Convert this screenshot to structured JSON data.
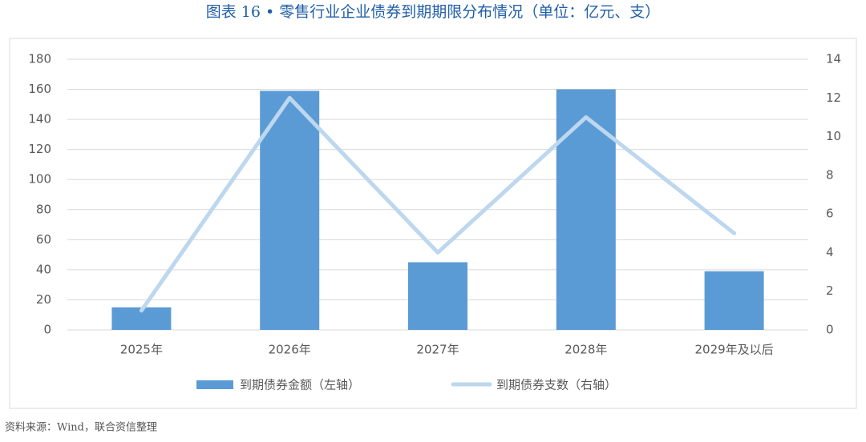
{
  "chart_data": {
    "type": "bar",
    "title": "图表 16 • 零售行业企业债券到期期限分布情况（单位：亿元、支）",
    "categories": [
      "2025年",
      "2026年",
      "2027年",
      "2028年",
      "2029年及以后"
    ],
    "series": [
      {
        "name": "到期债券金额（左轴）",
        "type": "bar",
        "color": "#5b9bd5",
        "values": [
          15,
          159,
          45,
          160,
          39
        ]
      },
      {
        "name": "到期债券支数（右轴）",
        "type": "line",
        "axis": "y2",
        "color": "#bdd7ee",
        "values": [
          1,
          12,
          4,
          11,
          5
        ]
      }
    ],
    "ylim": [
      0,
      180
    ],
    "yticks": [
      0,
      20,
      40,
      60,
      80,
      100,
      120,
      140,
      160,
      180
    ],
    "y2lim": [
      0,
      14
    ],
    "y2ticks": [
      0,
      2,
      4,
      6,
      8,
      10,
      12,
      14
    ],
    "grid": true,
    "legend": "bottom"
  },
  "source": "资料来源：Wind，联合资信整理"
}
